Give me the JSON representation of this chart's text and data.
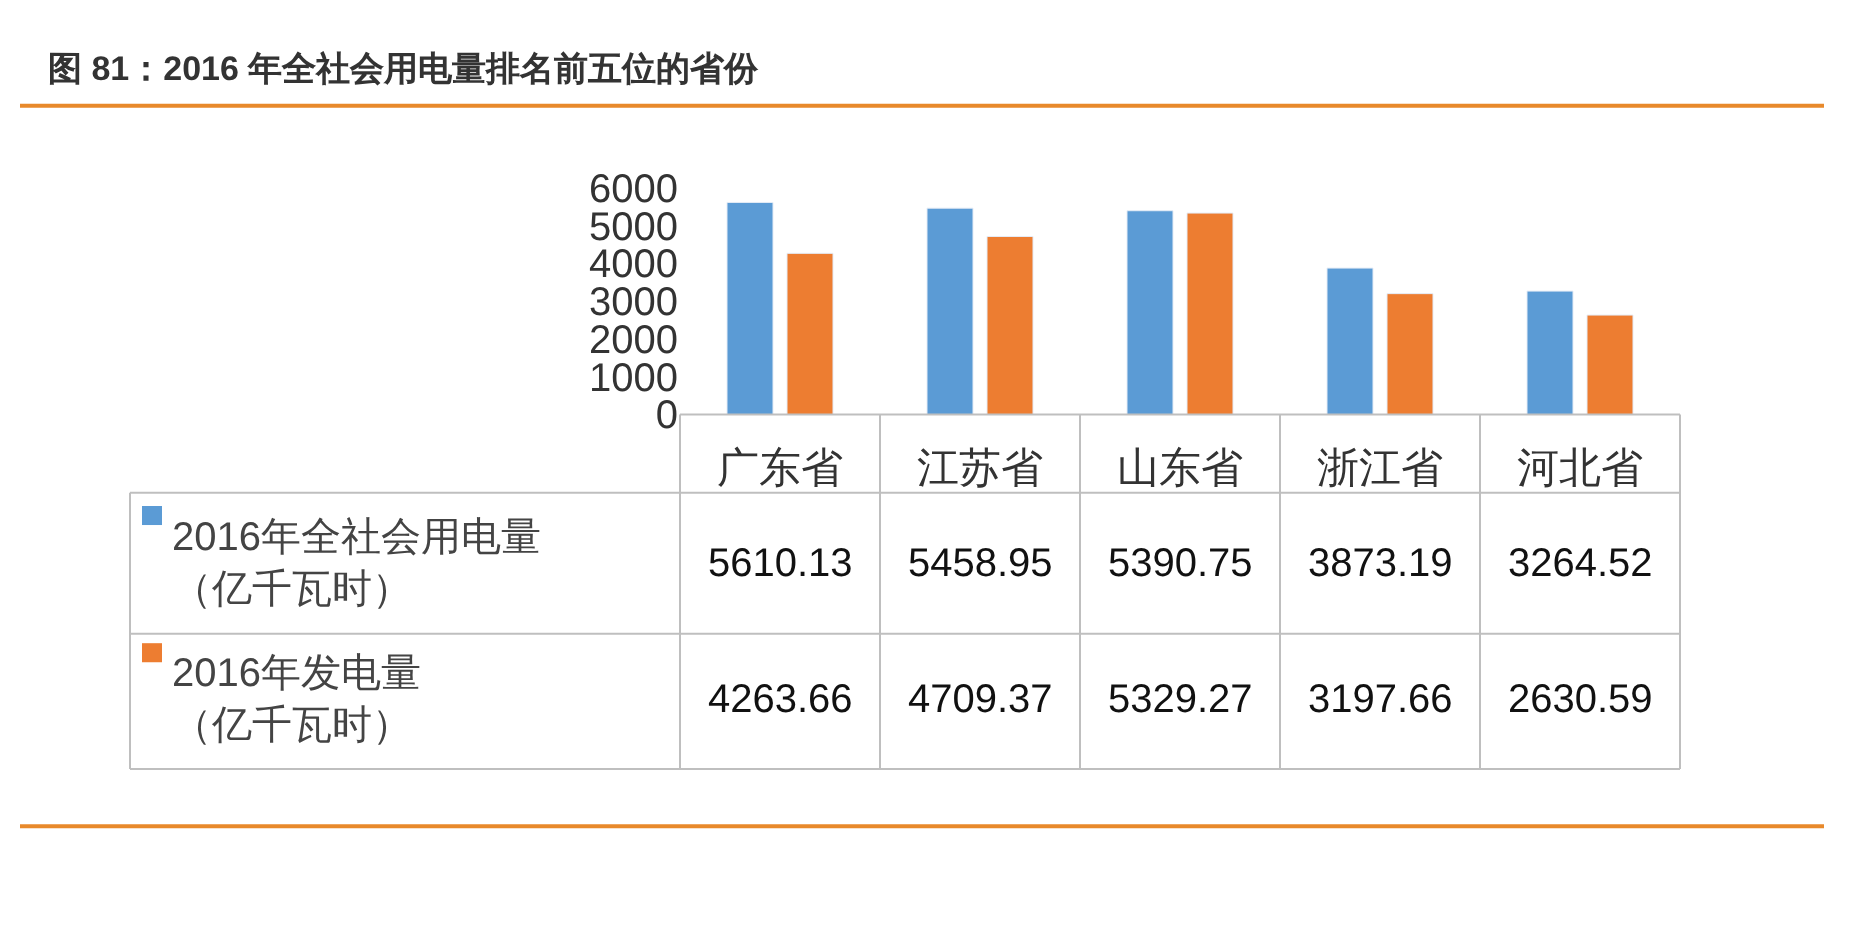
{
  "chart_data": {
    "type": "bar",
    "title": "图 81：2016 年全社会用电量排名前五位的省份",
    "categories": [
      "广东省",
      "江苏省",
      "山东省",
      "浙江省",
      "河北省"
    ],
    "series": [
      {
        "name": "2016年全社会用电量（亿千瓦时）",
        "color": "#5b9bd5",
        "values": [
          5610.13,
          5458.95,
          5390.75,
          3873.19,
          3264.52
        ]
      },
      {
        "name": "2016年发电量（亿千瓦时）",
        "color": "#ed7d31",
        "values": [
          4263.66,
          4709.37,
          5329.27,
          3197.66,
          2630.59
        ]
      }
    ],
    "ylim": [
      0,
      6000
    ],
    "yticks": [
      0,
      1000,
      2000,
      3000,
      4000,
      5000,
      6000
    ],
    "data_labels": true,
    "legend": "bottom left"
  }
}
